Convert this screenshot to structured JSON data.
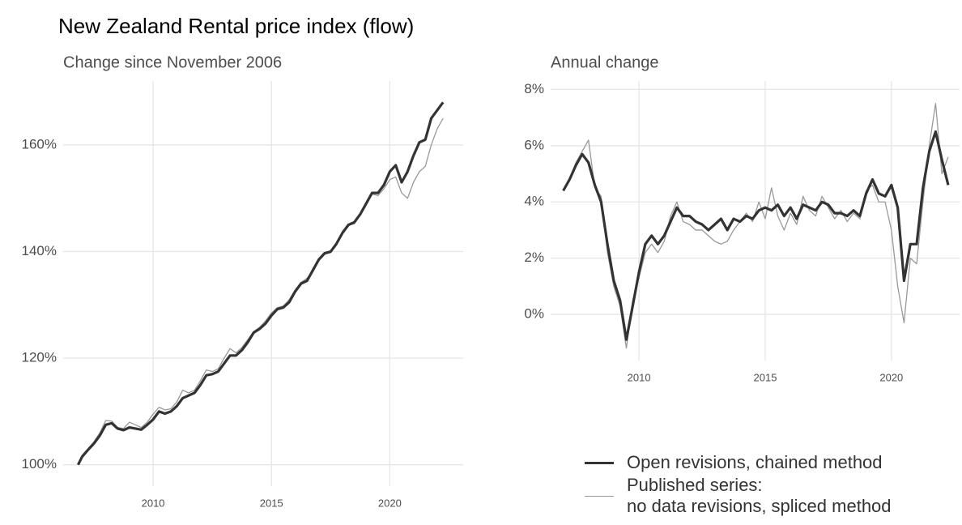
{
  "title": "New Zealand Rental price index (flow)",
  "chart_data": [
    {
      "type": "line",
      "subtitle": "Change since November 2006",
      "x": [
        2006.83,
        2007.0,
        2007.25,
        2007.5,
        2007.75,
        2008.0,
        2008.25,
        2008.5,
        2008.75,
        2009.0,
        2009.25,
        2009.5,
        2009.75,
        2010.0,
        2010.25,
        2010.5,
        2010.75,
        2011.0,
        2011.25,
        2011.5,
        2011.75,
        2012.0,
        2012.25,
        2012.5,
        2012.75,
        2013.0,
        2013.25,
        2013.5,
        2013.75,
        2014.0,
        2014.25,
        2014.5,
        2014.75,
        2015.0,
        2015.25,
        2015.5,
        2015.75,
        2016.0,
        2016.25,
        2016.5,
        2016.75,
        2017.0,
        2017.25,
        2017.5,
        2017.75,
        2018.0,
        2018.25,
        2018.5,
        2018.75,
        2019.0,
        2019.25,
        2019.5,
        2019.75,
        2020.0,
        2020.25,
        2020.5,
        2020.75,
        2021.0,
        2021.25,
        2021.5,
        2021.75,
        2022.0,
        2022.25
      ],
      "series": [
        {
          "name": "Open revisions, chained method",
          "color": "#333333",
          "width": 3.2,
          "values": [
            100,
            101.5,
            102.8,
            104,
            105.5,
            107.5,
            107.8,
            106.8,
            106.5,
            107,
            106.8,
            106.6,
            107.5,
            108.5,
            110,
            109.6,
            110,
            111,
            112.5,
            113,
            113.5,
            115,
            116.8,
            117,
            117.5,
            119,
            120.5,
            120.5,
            121.5,
            123,
            124.8,
            125.5,
            126.5,
            128,
            129.2,
            129.5,
            130.5,
            132.5,
            134,
            134.5,
            136.5,
            138.5,
            139.7,
            140,
            141.5,
            143.5,
            145,
            145.5,
            147,
            149,
            151,
            151,
            152.5,
            155,
            156.2,
            153,
            155,
            158,
            160.5,
            161,
            165,
            166.5,
            168
          ]
        },
        {
          "name": "Published series:\nno data revisions, spliced method",
          "color": "#999999",
          "width": 1.3,
          "values": [
            100,
            101.8,
            103,
            104.3,
            106,
            108.3,
            108.2,
            107,
            106.8,
            108,
            107.5,
            107,
            108,
            109.5,
            110.8,
            110.3,
            110.5,
            111.8,
            114,
            113.5,
            114,
            115.8,
            117.8,
            117.5,
            118,
            120,
            121.8,
            121,
            122,
            123.5,
            125,
            125.8,
            127,
            128.5,
            129.5,
            129.8,
            131,
            132.8,
            134.2,
            135,
            136.2,
            138.3,
            139.5,
            139.8,
            141.2,
            143.8,
            145,
            145.2,
            146.8,
            149.2,
            150.8,
            150.5,
            151.8,
            153.5,
            154,
            151,
            150,
            153,
            155,
            156,
            160,
            163,
            165
          ]
        }
      ],
      "xlim": [
        2006.2,
        2023.1
      ],
      "xticks": [
        2010,
        2015,
        2020
      ],
      "ylim": [
        96,
        172
      ],
      "yticks": [
        {
          "value": 100,
          "label": "100%"
        },
        {
          "value": 120,
          "label": "120%"
        },
        {
          "value": 140,
          "label": "140%"
        },
        {
          "value": 160,
          "label": "160%"
        }
      ],
      "grid": true
    },
    {
      "type": "line",
      "subtitle": "Annual change",
      "x": [
        2007.0,
        2007.25,
        2007.5,
        2007.75,
        2008.0,
        2008.25,
        2008.5,
        2008.75,
        2009.0,
        2009.25,
        2009.5,
        2009.75,
        2010.0,
        2010.25,
        2010.5,
        2010.75,
        2011.0,
        2011.25,
        2011.5,
        2011.75,
        2012.0,
        2012.25,
        2012.5,
        2012.75,
        2013.0,
        2013.25,
        2013.5,
        2013.75,
        2014.0,
        2014.25,
        2014.5,
        2014.75,
        2015.0,
        2015.25,
        2015.5,
        2015.75,
        2016.0,
        2016.25,
        2016.5,
        2016.75,
        2017.0,
        2017.25,
        2017.5,
        2017.75,
        2018.0,
        2018.25,
        2018.5,
        2018.75,
        2019.0,
        2019.25,
        2019.5,
        2019.75,
        2020.0,
        2020.25,
        2020.5,
        2020.75,
        2021.0,
        2021.25,
        2021.5,
        2021.75,
        2022.0,
        2022.25
      ],
      "series": [
        {
          "color": "#333333",
          "width": 3.2,
          "values": [
            4.4,
            4.8,
            5.3,
            5.7,
            5.4,
            4.6,
            4.0,
            2.5,
            1.2,
            0.5,
            -0.9,
            0.3,
            1.5,
            2.5,
            2.8,
            2.5,
            2.8,
            3.3,
            3.8,
            3.5,
            3.5,
            3.3,
            3.2,
            3.0,
            3.2,
            3.4,
            3.0,
            3.4,
            3.3,
            3.5,
            3.4,
            3.7,
            3.8,
            3.7,
            3.9,
            3.5,
            3.8,
            3.4,
            3.9,
            3.8,
            3.7,
            4.0,
            3.9,
            3.6,
            3.6,
            3.5,
            3.7,
            3.5,
            4.3,
            4.8,
            4.3,
            4.2,
            4.6,
            3.8,
            1.2,
            2.5,
            2.5,
            4.5,
            5.8,
            6.5,
            5.5,
            4.6
          ]
        },
        {
          "color": "#999999",
          "width": 1.3,
          "values": [
            4.4,
            4.8,
            5.4,
            5.8,
            6.2,
            4.5,
            4.2,
            2.2,
            1.0,
            0.3,
            -1.2,
            0.5,
            1.3,
            2.2,
            2.5,
            2.2,
            2.6,
            3.5,
            4.0,
            3.3,
            3.2,
            3.0,
            3.0,
            2.8,
            2.6,
            2.5,
            2.6,
            3.0,
            3.3,
            3.6,
            3.3,
            4.0,
            3.4,
            4.5,
            3.5,
            3.0,
            3.6,
            3.2,
            4.2,
            3.7,
            3.5,
            4.2,
            3.8,
            3.4,
            3.7,
            3.3,
            3.6,
            3.4,
            4.4,
            4.6,
            4.0,
            4.0,
            3.0,
            1.0,
            -0.3,
            2.0,
            1.8,
            4.0,
            6.0,
            7.5,
            5.0,
            5.6
          ]
        }
      ],
      "xlim": [
        2006.5,
        2022.7
      ],
      "xticks": [
        2010,
        2015,
        2020
      ],
      "ylim": [
        -1.64,
        8.3
      ],
      "yticks": [
        {
          "value": 0,
          "label": "0%"
        },
        {
          "value": 2,
          "label": "2%"
        },
        {
          "value": 4,
          "label": "4%"
        },
        {
          "value": 6,
          "label": "6%"
        },
        {
          "value": 8,
          "label": "8%"
        }
      ],
      "grid": true
    }
  ]
}
